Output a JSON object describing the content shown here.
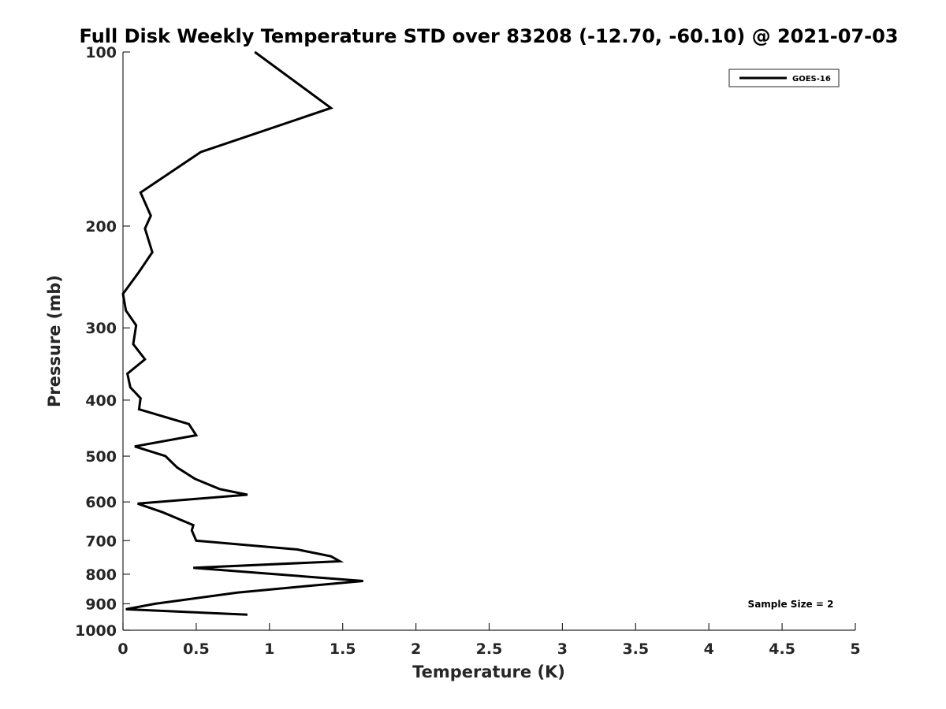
{
  "chart_data": {
    "type": "line",
    "title": "Full Disk Weekly Temperature STD over 83208 (-12.70, -60.10) @ 2021-07-03",
    "xlabel": "Temperature (K)",
    "ylabel": "Pressure (mb)",
    "xlim": [
      0,
      5
    ],
    "ylim": [
      100,
      1000
    ],
    "y_scale": "log",
    "y_reversed": true,
    "grid": false,
    "legend_position": "top-right",
    "x_ticks": [
      "0",
      "0.5",
      "1",
      "1.5",
      "2",
      "2.5",
      "3",
      "3.5",
      "4",
      "4.5",
      "5"
    ],
    "y_ticks": [
      "100",
      "200",
      "300",
      "400",
      "500",
      "600",
      "700",
      "800",
      "900",
      "1000"
    ],
    "annotation": "Sample Size = 2",
    "series": [
      {
        "name": "GOES-16",
        "color": "#000000",
        "points": [
          [
            0.9,
            100
          ],
          [
            1.42,
            125
          ],
          [
            0.53,
            149
          ],
          [
            0.12,
            175
          ],
          [
            0.19,
            192
          ],
          [
            0.15,
            202
          ],
          [
            0.2,
            222
          ],
          [
            0.11,
            240
          ],
          [
            0.0,
            262
          ],
          [
            0.02,
            280
          ],
          [
            0.09,
            297
          ],
          [
            0.07,
            320
          ],
          [
            0.15,
            340
          ],
          [
            0.03,
            360
          ],
          [
            0.05,
            380
          ],
          [
            0.12,
            397
          ],
          [
            0.11,
            415
          ],
          [
            0.45,
            440
          ],
          [
            0.5,
            460
          ],
          [
            0.08,
            481
          ],
          [
            0.29,
            500
          ],
          [
            0.37,
            523
          ],
          [
            0.49,
            547
          ],
          [
            0.66,
            570
          ],
          [
            0.85,
            583
          ],
          [
            0.1,
            604
          ],
          [
            0.27,
            625
          ],
          [
            0.48,
            658
          ],
          [
            0.47,
            672
          ],
          [
            0.5,
            700
          ],
          [
            1.19,
            725
          ],
          [
            1.42,
            745
          ],
          [
            1.48,
            760
          ],
          [
            0.48,
            780
          ],
          [
            1.64,
            822
          ],
          [
            1.23,
            840
          ],
          [
            0.78,
            861
          ],
          [
            0.22,
            900
          ],
          [
            0.02,
            920
          ],
          [
            0.85,
            940
          ]
        ]
      }
    ]
  }
}
